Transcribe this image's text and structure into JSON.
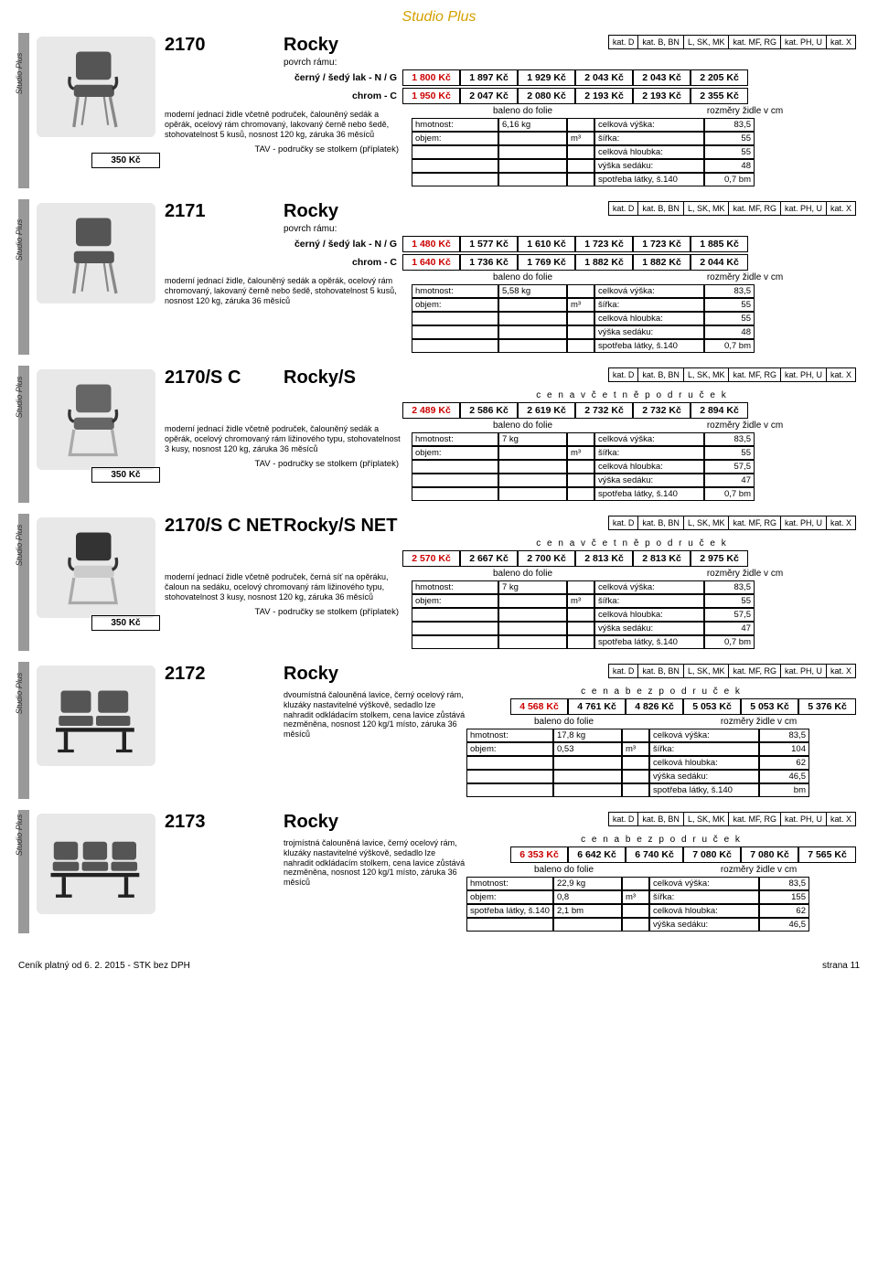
{
  "pageTitle": "Studio Plus",
  "sideLabel": "Studio Plus",
  "catHeaders": [
    "kat. D",
    "kat. B, BN",
    "L, SK, MK",
    "kat. MF, RG",
    "kat. PH, U",
    "kat. X"
  ],
  "frameLabel": "povrch rámu:",
  "baleno": "baleno do folie",
  "rozmery": "rozměry židle v cm",
  "hmotnost": "hmotnost:",
  "objem": "objem:",
  "m3": "m³",
  "vyska": "celková výška:",
  "sirka": "šířka:",
  "hloubka": "celková hloubka:",
  "vyskaSedaku": "výška sedáku:",
  "spotreba": "spotřeba látky, š.140",
  "tavLabel": "TAV - područky se stolkem (příplatek)",
  "tavPrice": "350 Kč",
  "cenaVcetne": "c e n a   v č e t n ě   p o d r u č e k",
  "cenaBez": "c e n a   b e z   p o d r u č e k",
  "products": [
    {
      "code": "2170",
      "name": "Rocky",
      "finishes": [
        {
          "label": "černý / šedý lak - N / G",
          "prices": [
            "1 800 Kč",
            "1 897 Kč",
            "1 929 Kč",
            "2 043 Kč",
            "2 043 Kč",
            "2 205 Kč"
          ]
        },
        {
          "label": "chrom - C",
          "prices": [
            "1 950 Kč",
            "2 047 Kč",
            "2 080 Kč",
            "2 193 Kč",
            "2 193 Kč",
            "2 355 Kč"
          ]
        }
      ],
      "desc": "moderní jednací židle včetně područek, čalouněný sedák a opěrák, ocelový rám chromovaný, lakovaný černě nebo šedě, stohovatelnost 5 kusů, nosnost 120 kg, záruka 36 měsíců",
      "hmot": "6,16 kg",
      "vyska": "83,5",
      "sirka": "55",
      "hloubka": "55",
      "sedak": "48",
      "spotreba": "0,7 bm",
      "hasTAV": true,
      "hasFrameLabel": true,
      "img": "chair-arm"
    },
    {
      "code": "2171",
      "name": "Rocky",
      "finishes": [
        {
          "label": "černý / šedý lak - N / G",
          "prices": [
            "1 480 Kč",
            "1 577 Kč",
            "1 610 Kč",
            "1 723 Kč",
            "1 723 Kč",
            "1 885 Kč"
          ]
        },
        {
          "label": "chrom - C",
          "prices": [
            "1 640 Kč",
            "1 736 Kč",
            "1 769 Kč",
            "1 882 Kč",
            "1 882 Kč",
            "2 044 Kč"
          ]
        }
      ],
      "desc": "moderní jednací židle, čalouněný sedák a opěrák, ocelový rám chromovaný, lakovaný černě nebo šedě, stohovatelnost 5 kusů, nosnost 120 kg, záruka 36 měsíců",
      "hmot": "5,58 kg",
      "vyska": "83,5",
      "sirka": "55",
      "hloubka": "55",
      "sedak": "48",
      "spotreba": "0,7 bm",
      "hasTAV": false,
      "hasFrameLabel": true,
      "img": "chair"
    },
    {
      "code": "2170/S C",
      "name": "Rocky/S",
      "cenaLine": "vcetne",
      "singlePrices": [
        "2 489 Kč",
        "2 586 Kč",
        "2 619 Kč",
        "2 732 Kč",
        "2 732 Kč",
        "2 894 Kč"
      ],
      "desc": "moderní jednací židle včetně područek, čalouněný sedák a opěrák, ocelový chromovaný rám ližinového typu, stohovatelnost 3 kusy, nosnost 120 kg, záruka 36 měsíců",
      "hmot": "7 kg",
      "vyska": "83,5",
      "sirka": "55",
      "hloubka": "57,5",
      "sedak": "47",
      "spotreba": "0,7 bm",
      "hasTAV": true,
      "img": "chair-sled"
    },
    {
      "code": "2170/S C NET",
      "name": "Rocky/S NET",
      "cenaLine": "vcetne",
      "singlePrices": [
        "2 570 Kč",
        "2 667 Kč",
        "2 700 Kč",
        "2 813 Kč",
        "2 813 Kč",
        "2 975 Kč"
      ],
      "desc": "moderní jednací židle včetně područek, černá síť na opěráku, čaloun na sedáku, ocelový chromovaný rám ližinového typu, stohovatelnost 3 kusy, nosnost 120 kg, záruka 36 měsíců",
      "hmot": "7 kg",
      "vyska": "83,5",
      "sirka": "55",
      "hloubka": "57,5",
      "sedak": "47",
      "spotreba": "0,7 bm",
      "hasTAV": true,
      "img": "chair-net"
    },
    {
      "code": "2172",
      "name": "Rocky",
      "cenaLine": "bez",
      "singlePrices": [
        "4 568 Kč",
        "4 761 Kč",
        "4 826 Kč",
        "5 053 Kč",
        "5 053 Kč",
        "5 376 Kč"
      ],
      "desc": "dvoumístná čalouněná lavice, černý ocelový rám, kluzáky nastavitelné výškově, sedadlo lze nahradit odkládacím stolkem, cena lavice zůstává nezměněna, nosnost 120 kg/1 místo, záruka 36 měsíců",
      "hmot": "17,8 kg",
      "objemVal": "0,53",
      "vyska": "83,5",
      "sirka": "104",
      "hloubka": "62",
      "sedak": "46,5",
      "spotreba": "bm",
      "hasTAV": false,
      "img": "bench2",
      "descTop": true
    },
    {
      "code": "2173",
      "name": "Rocky",
      "cenaLine": "bez",
      "singlePrices": [
        "6 353 Kč",
        "6 642 Kč",
        "6 740 Kč",
        "7 080 Kč",
        "7 080 Kč",
        "7 565 Kč"
      ],
      "desc": "trojmístná čalouněná lavice, černý ocelový rám, kluzáky nastavitelné výškově, sedadlo lze nahradit odkládacím stolkem, cena lavice zůstává nezměněna, nosnost 120 kg/1 místo, záruka 36 měsíců",
      "hmot": "22,9 kg",
      "objemVal": "0,8",
      "vyska": "83,5",
      "sirka": "155",
      "hloubka": "62",
      "sedak": "46,5",
      "spotreba2": "2,1 bm",
      "hasTAV": false,
      "img": "bench3",
      "descTop": true
    }
  ],
  "footer": {
    "left": "Ceník platný od 6. 2. 2015 - STK bez DPH",
    "right": "strana 11"
  }
}
